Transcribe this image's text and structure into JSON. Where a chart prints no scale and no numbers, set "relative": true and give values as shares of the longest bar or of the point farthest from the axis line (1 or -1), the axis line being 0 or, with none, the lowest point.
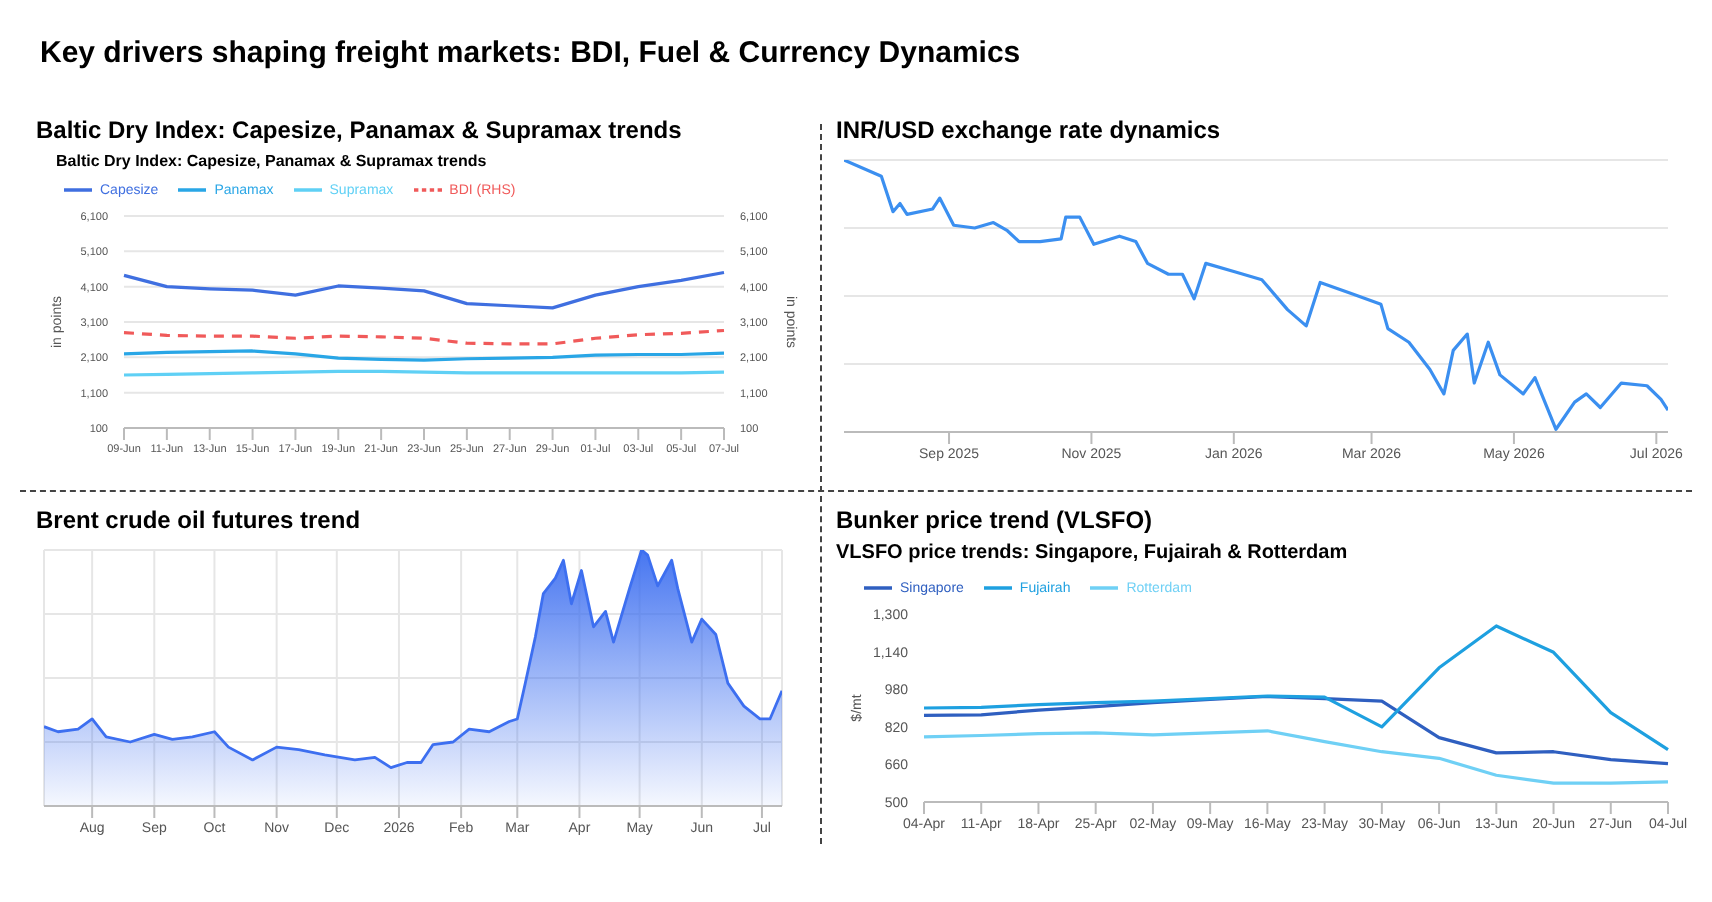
{
  "chart_data": [
    {
      "type": "line",
      "title": "Key drivers shaping freight markets: BDI, Fuel & Currency Dynamics",
      "subtitle": "Baltic Dry Index: Capesize, Panamax & Supramax trends",
      "annotations": [
        "Baltic Dry Index: Capesize, Panamax & Supramax trends"
      ],
      "ylabel": "in points",
      "y2label": "in points",
      "categories": [
        "09-Jun",
        "11-Jun",
        "13-Jun",
        "15-Jun",
        "17-Jun",
        "19-Jun",
        "21-Jun",
        "23-Jun",
        "25-Jun",
        "27-Jun",
        "29-Jun",
        "01-Jul",
        "03-Jul",
        "05-Jul",
        "07-Jul"
      ],
      "ylim": [
        100,
        6100
      ],
      "yticks": [
        {
          "value": 100,
          "label": "100"
        },
        {
          "value": 1100,
          "label": "1,100"
        },
        {
          "value": 2100,
          "label": "2,100"
        },
        {
          "value": 3100,
          "label": "3,100"
        },
        {
          "value": 4100,
          "label": "4,100"
        },
        {
          "value": 5100,
          "label": "5,100"
        },
        {
          "value": 6100,
          "label": "6,100"
        }
      ],
      "y2lim": [
        100,
        6100
      ],
      "y2ticks": [
        {
          "value": 100,
          "label": "100"
        },
        {
          "value": 1100,
          "label": "1,100"
        },
        {
          "value": 2100,
          "label": "2,100"
        },
        {
          "value": 3100,
          "label": "3,100"
        },
        {
          "value": 4100,
          "label": "4,100"
        },
        {
          "value": 5100,
          "label": "5,100"
        },
        {
          "value": 6100,
          "label": "6,100"
        }
      ],
      "grid": "y",
      "legend": "top left",
      "series": [
        {
          "name": "Capesize",
          "color": "#3f6fe0",
          "values": [
            4420,
            4100,
            4040,
            4000,
            3860,
            4120,
            4060,
            3980,
            3620,
            3560,
            3500,
            3860,
            4100,
            4280,
            4500
          ]
        },
        {
          "name": "Panamax",
          "color": "#29a6e6",
          "values": [
            2200,
            2240,
            2260,
            2280,
            2200,
            2080,
            2040,
            2020,
            2060,
            2080,
            2100,
            2160,
            2180,
            2180,
            2220
          ]
        },
        {
          "name": "Supramax",
          "color": "#5fd0f5",
          "values": [
            1600,
            1620,
            1640,
            1660,
            1680,
            1700,
            1700,
            1680,
            1660,
            1660,
            1660,
            1660,
            1660,
            1660,
            1680
          ]
        },
        {
          "name": "BDI (RHS)",
          "color": "#f05a5a",
          "axis": "y2",
          "line_style": "dashed",
          "values": [
            2800,
            2720,
            2700,
            2700,
            2640,
            2700,
            2680,
            2640,
            2500,
            2480,
            2480,
            2640,
            2740,
            2780,
            2860
          ]
        }
      ]
    },
    {
      "type": "line",
      "title": "INR/USD exchange rate dynamics",
      "relative": true,
      "grid": "y",
      "xlim": [
        "2025-07-18",
        "2026-07-06"
      ],
      "xticks": [
        {
          "value": "2025-09-01",
          "label": "Sep 2025"
        },
        {
          "value": "2025-11-01",
          "label": "Nov 2025"
        },
        {
          "value": "2026-01-01",
          "label": "Jan 2026"
        },
        {
          "value": "2026-03-01",
          "label": "Mar 2026"
        },
        {
          "value": "2026-05-01",
          "label": "May 2026"
        },
        {
          "value": "2026-07-01",
          "label": "Jul 2026"
        }
      ],
      "x": [
        "2025-07-18",
        "2025-08-03",
        "2025-08-08",
        "2025-08-11",
        "2025-08-14",
        "2025-08-25",
        "2025-08-28",
        "2025-09-03",
        "2025-09-12",
        "2025-09-20",
        "2025-09-26",
        "2025-10-01",
        "2025-10-10",
        "2025-10-19",
        "2025-10-21",
        "2025-10-27",
        "2025-11-02",
        "2025-11-13",
        "2025-11-20",
        "2025-11-25",
        "2025-12-04",
        "2025-12-10",
        "2025-12-15",
        "2025-12-20",
        "2026-01-01",
        "2026-01-13",
        "2026-01-24",
        "2026-02-01",
        "2026-02-07",
        "2026-02-20",
        "2026-03-05",
        "2026-03-08",
        "2026-03-17",
        "2026-03-26",
        "2026-04-01",
        "2026-04-05",
        "2026-04-11",
        "2026-04-14",
        "2026-04-20",
        "2026-04-25",
        "2026-05-05",
        "2026-05-10",
        "2026-05-19",
        "2026-05-27",
        "2026-06-01",
        "2026-06-07",
        "2026-06-16",
        "2026-06-27",
        "2026-07-03",
        "2026-07-06"
      ],
      "series": [
        {
          "color": "#3b8ff0",
          "values": [
            1,
            0.94,
            0.81,
            0.84,
            0.8,
            0.82,
            0.86,
            0.76,
            0.75,
            0.77,
            0.74,
            0.7,
            0.7,
            0.71,
            0.79,
            0.79,
            0.69,
            0.72,
            0.7,
            0.62,
            0.58,
            0.58,
            0.49,
            0.62,
            0.59,
            0.56,
            0.45,
            0.39,
            0.55,
            0.51,
            0.47,
            0.38,
            0.33,
            0.23,
            0.14,
            0.3,
            0.36,
            0.18,
            0.33,
            0.21,
            0.14,
            0.2,
            0.01,
            0.11,
            0.14,
            0.09,
            0.18,
            0.17,
            0.12,
            0.08
          ]
        }
      ]
    },
    {
      "type": "area",
      "title": "Brent crude oil futures trend",
      "relative": true,
      "grid": true,
      "xlim": [
        "2025-07-08",
        "2026-07-11"
      ],
      "xticks": [
        {
          "value": "2025-08-01",
          "label": "Aug"
        },
        {
          "value": "2025-09-01",
          "label": "Sep"
        },
        {
          "value": "2025-10-01",
          "label": "Oct"
        },
        {
          "value": "2025-11-01",
          "label": "Nov"
        },
        {
          "value": "2025-12-01",
          "label": "Dec"
        },
        {
          "value": "2026-01-01",
          "label": "2026"
        },
        {
          "value": "2026-02-01",
          "label": "Feb"
        },
        {
          "value": "2026-03-01",
          "label": "Mar"
        },
        {
          "value": "2026-04-01",
          "label": "Apr"
        },
        {
          "value": "2026-05-01",
          "label": "May"
        },
        {
          "value": "2026-06-01",
          "label": "Jun"
        },
        {
          "value": "2026-07-01",
          "label": "Jul"
        }
      ],
      "x": [
        "2025-07-08",
        "2025-07-15",
        "2025-07-25",
        "2025-08-01",
        "2025-08-08",
        "2025-08-20",
        "2025-09-01",
        "2025-09-10",
        "2025-09-20",
        "2025-10-01",
        "2025-10-08",
        "2025-10-20",
        "2025-11-01",
        "2025-11-12",
        "2025-11-25",
        "2025-12-10",
        "2025-12-20",
        "2025-12-28",
        "2026-01-05",
        "2026-01-12",
        "2026-01-18",
        "2026-01-28",
        "2026-02-05",
        "2026-02-15",
        "2026-02-25",
        "2026-03-01",
        "2026-03-05",
        "2026-03-10",
        "2026-03-14",
        "2026-03-20",
        "2026-03-24",
        "2026-03-28",
        "2026-04-02",
        "2026-04-08",
        "2026-04-14",
        "2026-04-18",
        "2026-04-26",
        "2026-05-02",
        "2026-05-05",
        "2026-05-10",
        "2026-05-17",
        "2026-05-20",
        "2026-05-27",
        "2026-06-01",
        "2026-06-08",
        "2026-06-14",
        "2026-06-22",
        "2026-06-30",
        "2026-07-05",
        "2026-07-11"
      ],
      "series": [
        {
          "color": "#3d6ff0",
          "values": [
            0.31,
            0.29,
            0.3,
            0.34,
            0.27,
            0.25,
            0.28,
            0.26,
            0.27,
            0.29,
            0.23,
            0.18,
            0.23,
            0.22,
            0.2,
            0.18,
            0.19,
            0.15,
            0.17,
            0.17,
            0.24,
            0.25,
            0.3,
            0.29,
            0.33,
            0.34,
            0.48,
            0.66,
            0.83,
            0.89,
            0.96,
            0.79,
            0.92,
            0.7,
            0.76,
            0.64,
            0.85,
            1,
            0.98,
            0.86,
            0.96,
            0.85,
            0.64,
            0.73,
            0.67,
            0.48,
            0.39,
            0.34,
            0.34,
            0.45
          ]
        }
      ]
    },
    {
      "type": "line",
      "title": "Bunker price trend (VLSFO)",
      "subtitle": "VLSFO price trends: Singapore, Fujairah & Rotterdam",
      "ylabel": "$/mt",
      "legend": "top left",
      "categories": [
        "04-Apr",
        "11-Apr",
        "18-Apr",
        "25-Apr",
        "02-May",
        "09-May",
        "16-May",
        "23-May",
        "30-May",
        "06-Jun",
        "13-Jun",
        "20-Jun",
        "27-Jun",
        "04-Jul"
      ],
      "ylim": [
        500,
        1300
      ],
      "yticks": [
        500,
        660,
        820,
        980,
        {
          "value": 1140,
          "label": "1,140"
        },
        {
          "value": 1300,
          "label": "1,300"
        }
      ],
      "series": [
        {
          "name": "Singapore",
          "color": "#2f5fc0",
          "values": [
            869,
            871,
            891,
            906,
            923,
            937,
            949,
            940,
            929,
            774,
            709,
            714,
            680,
            663
          ]
        },
        {
          "name": "Fujairah",
          "color": "#1ea0e0",
          "values": [
            900,
            903,
            914,
            923,
            929,
            940,
            951,
            946,
            820,
            1071,
            1249,
            1137,
            880,
            723
          ]
        },
        {
          "name": "Rotterdam",
          "color": "#6fd0f5",
          "values": [
            777,
            783,
            791,
            794,
            786,
            794,
            803,
            757,
            714,
            686,
            614,
            580,
            580,
            586
          ]
        }
      ]
    }
  ]
}
